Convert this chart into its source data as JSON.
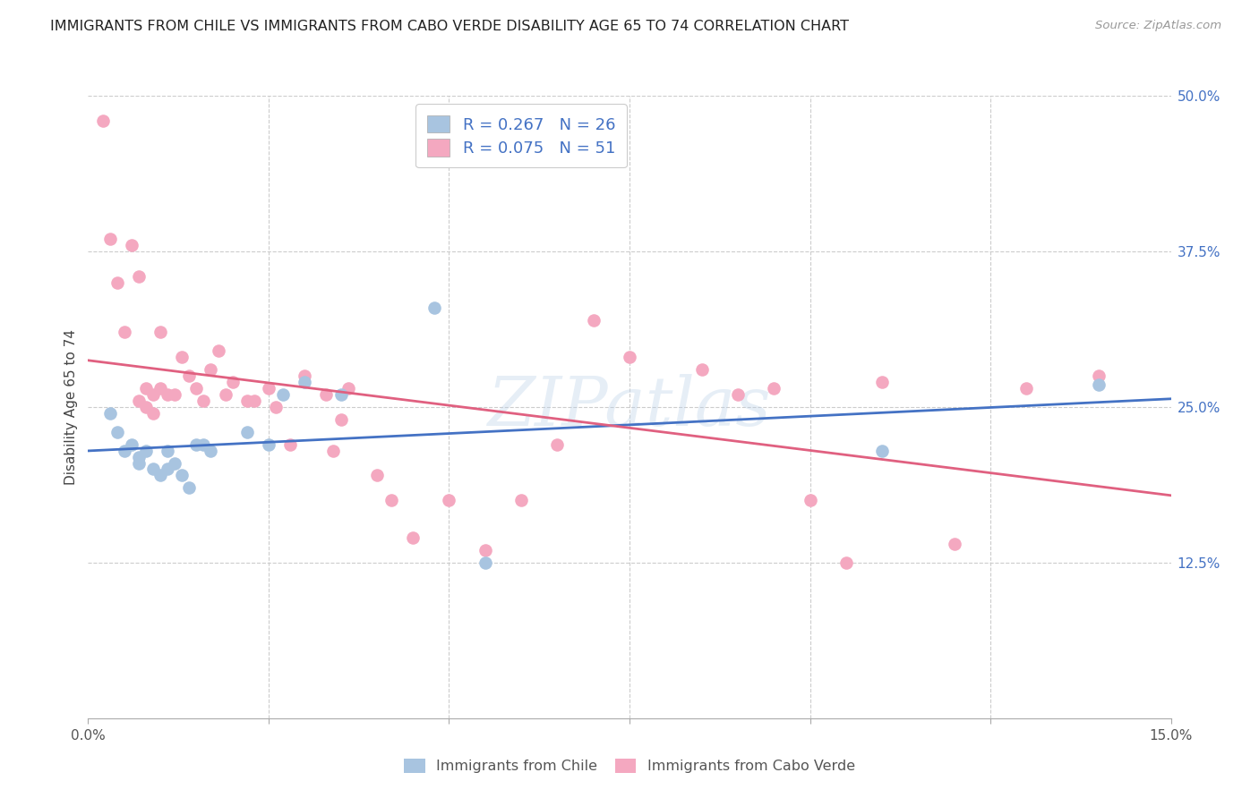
{
  "title": "IMMIGRANTS FROM CHILE VS IMMIGRANTS FROM CABO VERDE DISABILITY AGE 65 TO 74 CORRELATION CHART",
  "source": "Source: ZipAtlas.com",
  "ylabel": "Disability Age 65 to 74",
  "xlim": [
    0.0,
    0.15
  ],
  "ylim": [
    0.0,
    0.5
  ],
  "xticks": [
    0.0,
    0.025,
    0.05,
    0.075,
    0.1,
    0.125,
    0.15
  ],
  "xticklabels_show": {
    "0.0": "0.0%",
    "0.15": "15.0%"
  },
  "yticks_right": [
    0.0,
    0.125,
    0.25,
    0.375,
    0.5
  ],
  "yticklabels_right": [
    "",
    "12.5%",
    "25.0%",
    "37.5%",
    "50.0%"
  ],
  "R_chile": 0.267,
  "N_chile": 26,
  "R_caboverde": 0.075,
  "N_caboverde": 51,
  "color_chile": "#a8c4e0",
  "color_caboverde": "#f4a8c0",
  "line_color_chile": "#4472c4",
  "line_color_caboverde": "#e06080",
  "watermark": "ZIPatlas",
  "chile_x": [
    0.003,
    0.004,
    0.005,
    0.006,
    0.007,
    0.007,
    0.008,
    0.009,
    0.01,
    0.011,
    0.011,
    0.012,
    0.013,
    0.014,
    0.015,
    0.016,
    0.017,
    0.022,
    0.025,
    0.027,
    0.03,
    0.035,
    0.048,
    0.055,
    0.11,
    0.14
  ],
  "chile_y": [
    0.245,
    0.23,
    0.215,
    0.22,
    0.21,
    0.205,
    0.215,
    0.2,
    0.195,
    0.215,
    0.2,
    0.205,
    0.195,
    0.185,
    0.22,
    0.22,
    0.215,
    0.23,
    0.22,
    0.26,
    0.27,
    0.26,
    0.33,
    0.125,
    0.215,
    0.268
  ],
  "caboverde_x": [
    0.002,
    0.003,
    0.004,
    0.005,
    0.006,
    0.007,
    0.007,
    0.008,
    0.008,
    0.009,
    0.009,
    0.01,
    0.01,
    0.011,
    0.012,
    0.013,
    0.014,
    0.015,
    0.016,
    0.017,
    0.018,
    0.019,
    0.02,
    0.022,
    0.023,
    0.025,
    0.026,
    0.028,
    0.03,
    0.033,
    0.034,
    0.035,
    0.036,
    0.04,
    0.042,
    0.045,
    0.05,
    0.055,
    0.06,
    0.065,
    0.07,
    0.075,
    0.085,
    0.09,
    0.095,
    0.1,
    0.105,
    0.11,
    0.12,
    0.13,
    0.14
  ],
  "caboverde_y": [
    0.48,
    0.385,
    0.35,
    0.31,
    0.38,
    0.355,
    0.255,
    0.265,
    0.25,
    0.26,
    0.245,
    0.31,
    0.265,
    0.26,
    0.26,
    0.29,
    0.275,
    0.265,
    0.255,
    0.28,
    0.295,
    0.26,
    0.27,
    0.255,
    0.255,
    0.265,
    0.25,
    0.22,
    0.275,
    0.26,
    0.215,
    0.24,
    0.265,
    0.195,
    0.175,
    0.145,
    0.175,
    0.135,
    0.175,
    0.22,
    0.32,
    0.29,
    0.28,
    0.26,
    0.265,
    0.175,
    0.125,
    0.27,
    0.14,
    0.265,
    0.275
  ]
}
